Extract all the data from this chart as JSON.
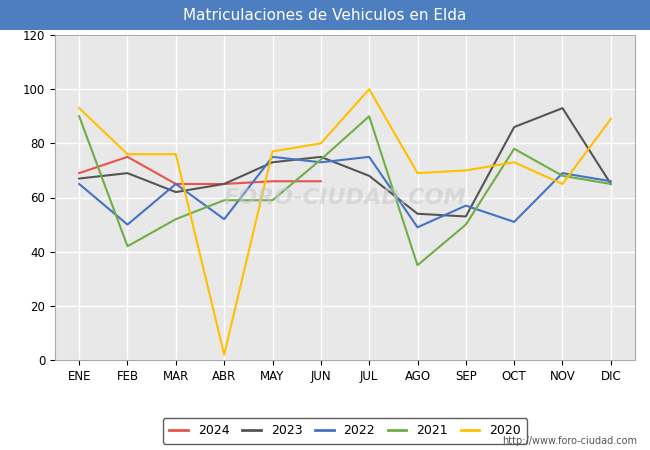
{
  "title": "Matriculaciones de Vehiculos en Elda",
  "title_bg_color": "#4d7ebf",
  "title_text_color": "#ffffff",
  "months": [
    "ENE",
    "FEB",
    "MAR",
    "ABR",
    "MAY",
    "JUN",
    "JUL",
    "AGO",
    "SEP",
    "OCT",
    "NOV",
    "DIC"
  ],
  "series": {
    "2024": {
      "color": "#e8534a",
      "data": [
        69,
        75,
        65,
        65,
        66,
        66,
        null,
        null,
        null,
        null,
        null,
        null
      ]
    },
    "2023": {
      "color": "#555555",
      "data": [
        67,
        69,
        62,
        65,
        73,
        75,
        68,
        54,
        53,
        86,
        93,
        65
      ]
    },
    "2022": {
      "color": "#4472c4",
      "data": [
        65,
        50,
        65,
        52,
        75,
        73,
        75,
        49,
        57,
        51,
        69,
        66
      ]
    },
    "2021": {
      "color": "#70ad47",
      "data": [
        90,
        42,
        52,
        59,
        59,
        74,
        90,
        35,
        50,
        78,
        68,
        65
      ]
    },
    "2020": {
      "color": "#ffc000",
      "data": [
        93,
        76,
        76,
        2,
        77,
        80,
        100,
        69,
        70,
        73,
        65,
        89
      ]
    }
  },
  "ylim": [
    0,
    120
  ],
  "yticks": [
    0,
    20,
    40,
    60,
    80,
    100,
    120
  ],
  "watermark": "FORO-CIUDAD.COM",
  "url": "http://www.foro-ciudad.com",
  "plot_bg_color": "#e8e8e8",
  "fig_bg_color": "#ffffff"
}
